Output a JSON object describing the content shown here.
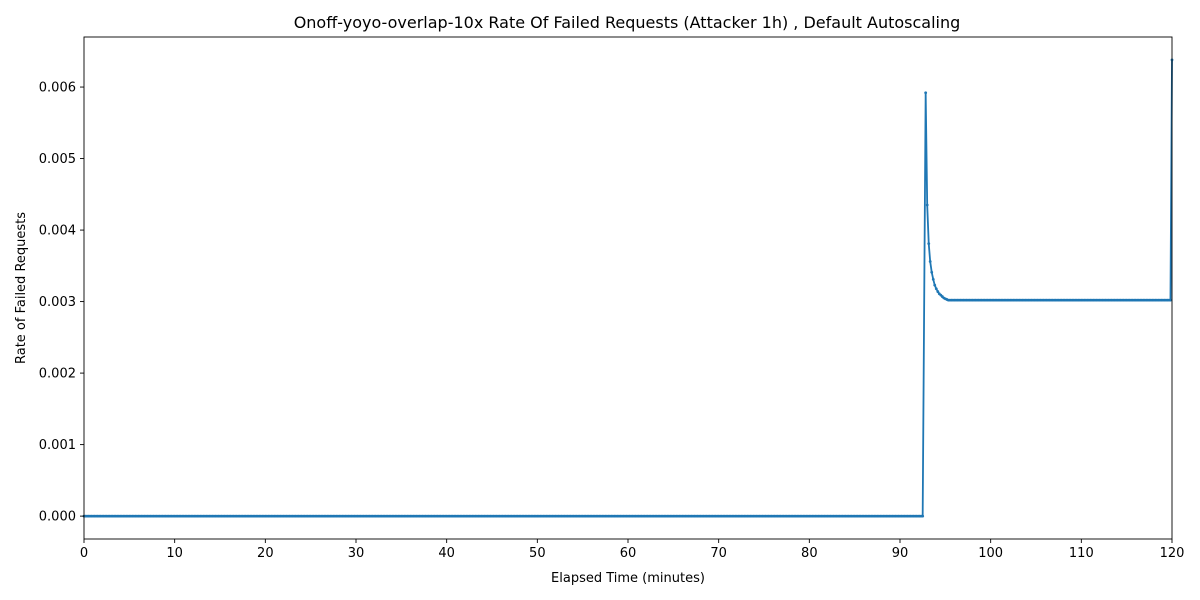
{
  "chart_data": {
    "type": "line",
    "title": "Onoff-yoyo-overlap-10x Rate Of Failed Requests (Attacker 1h) , Default Autoscaling",
    "xlabel": "Elapsed Time (minutes)",
    "ylabel": "Rate of Failed Requests",
    "xlim": [
      0,
      120
    ],
    "ylim": [
      -0.00032,
      0.0067
    ],
    "x_ticks": [
      0,
      10,
      20,
      30,
      40,
      50,
      60,
      70,
      80,
      90,
      100,
      110,
      120
    ],
    "x_tick_labels": [
      "0",
      "10",
      "20",
      "30",
      "40",
      "50",
      "60",
      "70",
      "80",
      "90",
      "100",
      "110",
      "120"
    ],
    "y_ticks": [
      0,
      0.001,
      0.002,
      0.003,
      0.004,
      0.005,
      0.006
    ],
    "y_tick_labels": [
      "0.000",
      "0.001",
      "0.002",
      "0.003",
      "0.004",
      "0.005",
      "0.006"
    ],
    "grid": false,
    "legend": false,
    "color": "#1f77b4",
    "series": [
      {
        "x": [
          0,
          92.5,
          92.83,
          93.0,
          93.17,
          93.33,
          93.5,
          93.67,
          93.83,
          94.0,
          94.17,
          94.33,
          94.5,
          94.67,
          94.83,
          95.0,
          95.17,
          95.33,
          95.5,
          95.67,
          119.83,
          120.0
        ],
        "y": [
          0,
          0,
          0.00592,
          0.00435,
          0.00381,
          0.00356,
          0.00341,
          0.00331,
          0.00323,
          0.00318,
          0.00314,
          0.00311,
          0.00309,
          0.00307,
          0.00305,
          0.00304,
          0.00303,
          0.00302,
          0.00302,
          0.00302,
          0.00302,
          0.00638
        ]
      }
    ]
  }
}
